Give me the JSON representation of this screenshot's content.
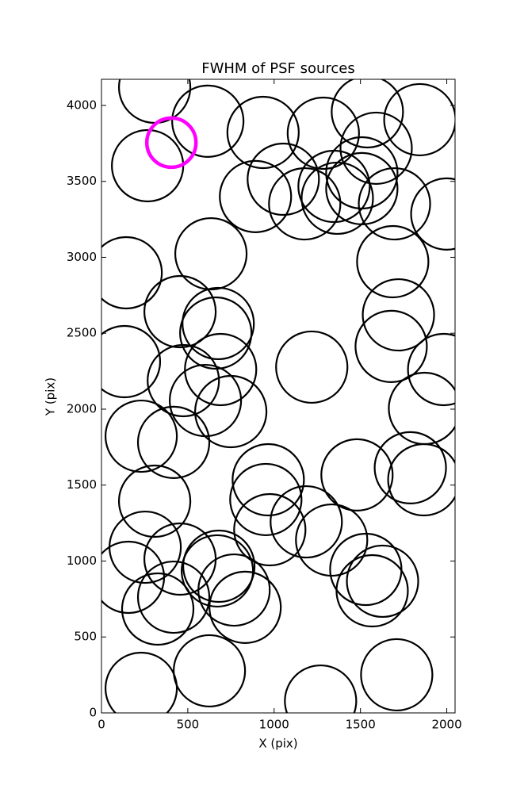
{
  "chart_data": {
    "type": "scatter",
    "title": "FWHM of PSF sources",
    "x_label": "X (pix)",
    "y_label": "Y (pix)",
    "xlim": [
      0,
      2048
    ],
    "ylim": [
      0,
      4172
    ],
    "xticks": [
      0,
      500,
      1000,
      1500,
      2000
    ],
    "yticks": [
      0,
      500,
      1000,
      1500,
      2000,
      2500,
      3000,
      3500,
      4000
    ],
    "grid": false,
    "series": [
      {
        "color": "#000000",
        "x": [
          308,
          616,
          267,
          936,
          1285,
          1540,
          1844,
          1591,
          1053,
          892,
          1177,
          1347,
          1508,
          1508,
          1366,
          1697,
          2000,
          143,
          634,
          1687,
          455,
          1720,
          676,
          662,
          1678,
          133,
          1218,
          474,
          690,
          602,
          749,
          1982,
          1871,
          230,
          418,
          1789,
          1867,
          1480,
          966,
          952,
          308,
          975,
          1186,
          1333,
          253,
          455,
          671,
          680,
          768,
          832,
          156,
          418,
          326,
          1531,
          1628,
          1568,
          230,
          625,
          1269,
          1710
        ],
        "y": [
          4120,
          3896,
          3603,
          3822,
          3817,
          3958,
          3906,
          3718,
          3514,
          3400,
          3352,
          3467,
          3556,
          3452,
          3389,
          3352,
          3285,
          2898,
          3023,
          2971,
          2642,
          2621,
          2564,
          2501,
          2413,
          2313,
          2277,
          2188,
          2261,
          2057,
          1984,
          2261,
          2005,
          1822,
          1781,
          1614,
          1535,
          1567,
          1535,
          1405,
          1394,
          1206,
          1258,
          1138,
          1091,
          1013,
          935,
          966,
          809,
          695,
          893,
          762,
          684,
          945,
          867,
          804,
          162,
          277,
          78,
          251
        ]
      },
      {
        "color": "#ff00ff",
        "x": [
          405
        ],
        "y": [
          3755
        ]
      }
    ]
  }
}
